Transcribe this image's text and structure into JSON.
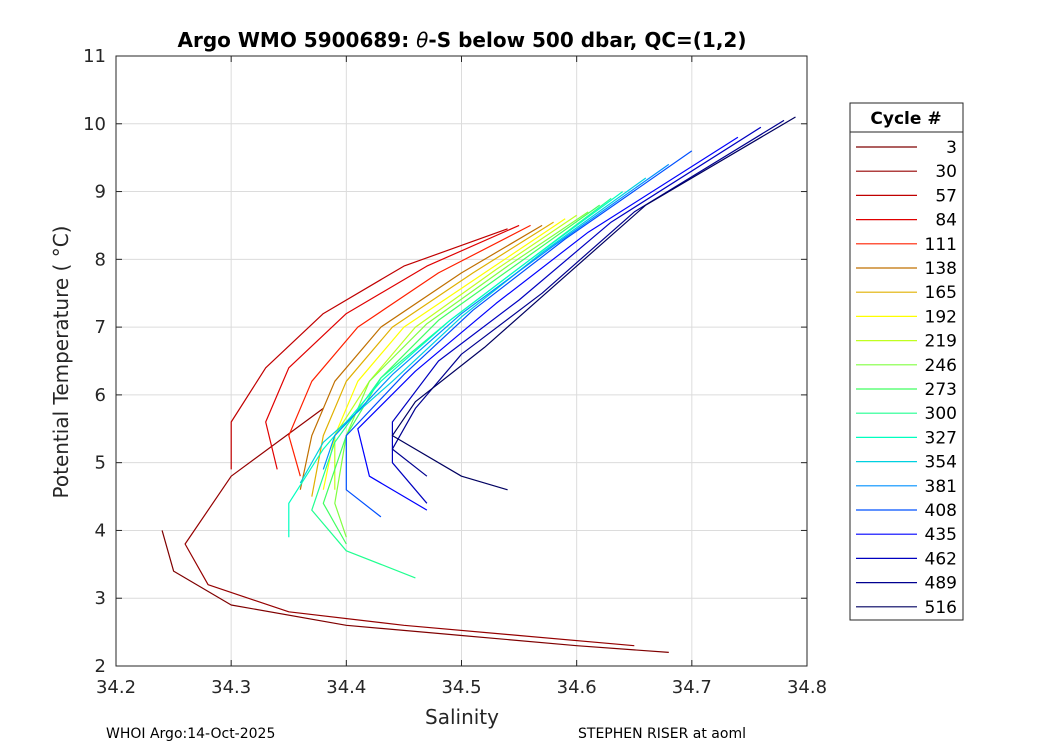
{
  "chart_data": {
    "type": "line",
    "title_prefix": "Argo WMO 5900689: ",
    "title_symbol": "θ",
    "title_suffix": "-S below 500 dbar,  QC=(1,2)",
    "xlabel": "Salinity",
    "ylabel": "Potential Temperature ( °C)",
    "xlim": [
      34.2,
      34.8
    ],
    "ylim": [
      2,
      11
    ],
    "x_ticks": [
      34.2,
      34.3,
      34.4,
      34.5,
      34.6,
      34.7,
      34.8
    ],
    "x_tick_labels": [
      "34.2",
      "34.3",
      "34.4",
      "34.5",
      "34.6",
      "34.7",
      "34.8"
    ],
    "y_ticks": [
      2,
      3,
      4,
      5,
      6,
      7,
      8,
      9,
      10,
      11
    ],
    "y_tick_labels": [
      "2",
      "3",
      "4",
      "5",
      "6",
      "7",
      "8",
      "9",
      "10",
      "11"
    ],
    "grid": true,
    "legend_title": "Cycle #",
    "legend_position": "outside-right",
    "legend": [
      {
        "label": "3",
        "color": "#7f0000"
      },
      {
        "label": "30",
        "color": "#950000"
      },
      {
        "label": "57",
        "color": "#c00000"
      },
      {
        "label": "84",
        "color": "#e00000"
      },
      {
        "label": "111",
        "color": "#ff2000"
      },
      {
        "label": "138",
        "color": "#c07000"
      },
      {
        "label": "165",
        "color": "#e0b000"
      },
      {
        "label": "192",
        "color": "#ffff00"
      },
      {
        "label": "219",
        "color": "#c0ff20"
      },
      {
        "label": "246",
        "color": "#80ff40"
      },
      {
        "label": "273",
        "color": "#40ff60"
      },
      {
        "label": "300",
        "color": "#20ff90"
      },
      {
        "label": "327",
        "color": "#00ffc0"
      },
      {
        "label": "354",
        "color": "#00d0e0"
      },
      {
        "label": "381",
        "color": "#0090ff"
      },
      {
        "label": "408",
        "color": "#0050ff"
      },
      {
        "label": "435",
        "color": "#0000ff"
      },
      {
        "label": "462",
        "color": "#0000c0"
      },
      {
        "label": "489",
        "color": "#000090"
      },
      {
        "label": "516",
        "color": "#000060"
      }
    ],
    "series": [
      {
        "name": "3",
        "color": "#7f0000",
        "points": [
          [
            34.68,
            2.2
          ],
          [
            34.6,
            2.3
          ],
          [
            34.5,
            2.45
          ],
          [
            34.4,
            2.6
          ],
          [
            34.3,
            2.9
          ],
          [
            34.25,
            3.4
          ],
          [
            34.24,
            4.0
          ]
        ]
      },
      {
        "name": "30",
        "color": "#950000",
        "points": [
          [
            34.65,
            2.3
          ],
          [
            34.55,
            2.45
          ],
          [
            34.45,
            2.6
          ],
          [
            34.35,
            2.8
          ],
          [
            34.28,
            3.2
          ],
          [
            34.26,
            3.8
          ],
          [
            34.3,
            4.8
          ],
          [
            34.38,
            5.8
          ]
        ]
      },
      {
        "name": "57",
        "color": "#c00000",
        "points": [
          [
            34.54,
            8.45
          ],
          [
            34.45,
            7.9
          ],
          [
            34.38,
            7.2
          ],
          [
            34.33,
            6.4
          ],
          [
            34.3,
            5.6
          ],
          [
            34.3,
            4.9
          ]
        ]
      },
      {
        "name": "84",
        "color": "#e00000",
        "points": [
          [
            34.55,
            8.5
          ],
          [
            34.47,
            7.9
          ],
          [
            34.4,
            7.2
          ],
          [
            34.35,
            6.4
          ],
          [
            34.33,
            5.6
          ],
          [
            34.34,
            4.9
          ]
        ]
      },
      {
        "name": "111",
        "color": "#ff2000",
        "points": [
          [
            34.56,
            8.5
          ],
          [
            34.48,
            7.8
          ],
          [
            34.41,
            7.0
          ],
          [
            34.37,
            6.2
          ],
          [
            34.35,
            5.4
          ],
          [
            34.36,
            4.8
          ]
        ]
      },
      {
        "name": "138",
        "color": "#c07000",
        "points": [
          [
            34.57,
            8.5
          ],
          [
            34.5,
            7.8
          ],
          [
            34.43,
            7.0
          ],
          [
            34.39,
            6.2
          ],
          [
            34.37,
            5.4
          ],
          [
            34.36,
            4.6
          ]
        ]
      },
      {
        "name": "165",
        "color": "#e0b000",
        "points": [
          [
            34.58,
            8.55
          ],
          [
            34.51,
            7.8
          ],
          [
            34.44,
            7.0
          ],
          [
            34.4,
            6.2
          ],
          [
            34.38,
            5.4
          ],
          [
            34.37,
            4.5
          ]
        ]
      },
      {
        "name": "192",
        "color": "#ffff00",
        "points": [
          [
            34.59,
            8.6
          ],
          [
            34.52,
            7.8
          ],
          [
            34.45,
            7.0
          ],
          [
            34.41,
            6.2
          ],
          [
            34.39,
            5.4
          ],
          [
            34.38,
            4.6
          ]
        ]
      },
      {
        "name": "219",
        "color": "#c0ff20",
        "points": [
          [
            34.6,
            8.65
          ],
          [
            34.53,
            7.85
          ],
          [
            34.46,
            7.0
          ],
          [
            34.42,
            6.2
          ],
          [
            34.39,
            5.4
          ],
          [
            34.39,
            4.6
          ]
        ]
      },
      {
        "name": "246",
        "color": "#80ff40",
        "points": [
          [
            34.61,
            8.7
          ],
          [
            34.54,
            7.9
          ],
          [
            34.47,
            7.05
          ],
          [
            34.42,
            6.2
          ],
          [
            34.4,
            5.4
          ],
          [
            34.39,
            4.4
          ],
          [
            34.4,
            3.9
          ]
        ]
      },
      {
        "name": "273",
        "color": "#40ff60",
        "points": [
          [
            34.62,
            8.8
          ],
          [
            34.55,
            7.95
          ],
          [
            34.48,
            7.1
          ],
          [
            34.43,
            6.25
          ],
          [
            34.4,
            5.4
          ],
          [
            34.38,
            4.4
          ],
          [
            34.4,
            3.8
          ]
        ]
      },
      {
        "name": "300",
        "color": "#20ff90",
        "points": [
          [
            34.63,
            8.9
          ],
          [
            34.56,
            8.0
          ],
          [
            34.49,
            7.1
          ],
          [
            34.43,
            6.25
          ],
          [
            34.39,
            5.3
          ],
          [
            34.37,
            4.3
          ],
          [
            34.4,
            3.7
          ],
          [
            34.46,
            3.3
          ]
        ]
      },
      {
        "name": "327",
        "color": "#00ffc0",
        "points": [
          [
            34.64,
            9.0
          ],
          [
            34.56,
            8.0
          ],
          [
            34.49,
            7.1
          ],
          [
            34.43,
            6.2
          ],
          [
            34.38,
            5.2
          ],
          [
            34.35,
            4.4
          ],
          [
            34.35,
            3.9
          ]
        ]
      },
      {
        "name": "354",
        "color": "#00d0e0",
        "points": [
          [
            34.66,
            9.2
          ],
          [
            34.57,
            8.1
          ],
          [
            34.5,
            7.15
          ],
          [
            34.44,
            6.2
          ],
          [
            34.38,
            5.3
          ],
          [
            34.36,
            4.7
          ]
        ]
      },
      {
        "name": "381",
        "color": "#0090ff",
        "points": [
          [
            34.68,
            9.4
          ],
          [
            34.58,
            8.2
          ],
          [
            34.5,
            7.2
          ],
          [
            34.44,
            6.3
          ],
          [
            34.39,
            5.4
          ],
          [
            34.38,
            4.9
          ]
        ]
      },
      {
        "name": "408",
        "color": "#0050ff",
        "points": [
          [
            34.7,
            9.6
          ],
          [
            34.59,
            8.3
          ],
          [
            34.51,
            7.25
          ],
          [
            34.45,
            6.3
          ],
          [
            34.4,
            5.4
          ],
          [
            34.4,
            4.6
          ],
          [
            34.43,
            4.2
          ]
        ]
      },
      {
        "name": "435",
        "color": "#0000ff",
        "points": [
          [
            34.74,
            9.8
          ],
          [
            34.61,
            8.4
          ],
          [
            34.53,
            7.35
          ],
          [
            34.46,
            6.35
          ],
          [
            34.41,
            5.5
          ],
          [
            34.42,
            4.8
          ],
          [
            34.47,
            4.3
          ]
        ]
      },
      {
        "name": "462",
        "color": "#0000c0",
        "points": [
          [
            34.76,
            9.95
          ],
          [
            34.63,
            8.55
          ],
          [
            34.55,
            7.4
          ],
          [
            34.48,
            6.5
          ],
          [
            34.44,
            5.6
          ],
          [
            34.44,
            5.0
          ],
          [
            34.47,
            4.4
          ]
        ]
      },
      {
        "name": "489",
        "color": "#000090",
        "points": [
          [
            34.78,
            10.05
          ],
          [
            34.65,
            8.7
          ],
          [
            34.57,
            7.5
          ],
          [
            34.5,
            6.6
          ],
          [
            34.46,
            5.8
          ],
          [
            34.44,
            5.2
          ],
          [
            34.47,
            4.8
          ]
        ]
      },
      {
        "name": "516",
        "color": "#000060",
        "points": [
          [
            34.79,
            10.1
          ],
          [
            34.66,
            8.8
          ],
          [
            34.58,
            7.6
          ],
          [
            34.52,
            6.7
          ],
          [
            34.46,
            5.9
          ],
          [
            34.44,
            5.4
          ],
          [
            34.5,
            4.8
          ],
          [
            34.54,
            4.6
          ]
        ]
      }
    ]
  },
  "footer": {
    "left": "WHOI Argo:14-Oct-2025",
    "right": "STEPHEN RISER at aoml"
  }
}
